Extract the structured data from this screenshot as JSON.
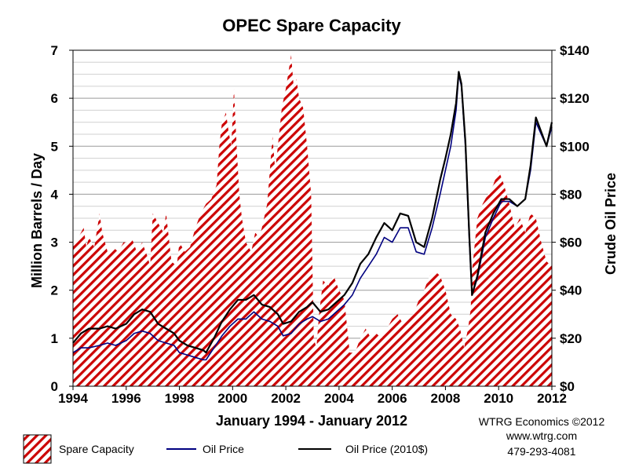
{
  "chart_data": {
    "type": "area",
    "title": "OPEC Spare Capacity",
    "xlabel": "January 1994 - January 2012",
    "ylabel": "Million Barrels / Day",
    "y2label": "Crude Oil Price",
    "xlim": [
      1994,
      2012
    ],
    "ylim": [
      0,
      7
    ],
    "y2lim": [
      0,
      140
    ],
    "grid": true,
    "x_ticks": [
      1994,
      1996,
      1998,
      2000,
      2002,
      2004,
      2006,
      2008,
      2010,
      2012
    ],
    "x_tick_labels": [
      "1994",
      "1996",
      "1998",
      "2000",
      "2002",
      "2004",
      "2006",
      "2008",
      "2010",
      "2012"
    ],
    "y_ticks": [
      0,
      1,
      2,
      3,
      4,
      5,
      6,
      7
    ],
    "y_tick_labels": [
      "0",
      "1",
      "2",
      "3",
      "4",
      "5",
      "6",
      "7"
    ],
    "y2_ticks": [
      0,
      20,
      40,
      60,
      80,
      100,
      120,
      140
    ],
    "y2_tick_labels": [
      "$0",
      "$20",
      "$40",
      "$60",
      "$80",
      "$100",
      "$120",
      "$140"
    ],
    "legend_placement": "bottom-left",
    "series": [
      {
        "name": "Spare Capacity",
        "kind": "area",
        "axis": "left",
        "color": "#cc0000",
        "x": [
          1994.0,
          1994.2,
          1994.4,
          1994.5,
          1994.6,
          1994.8,
          1995.0,
          1995.1,
          1995.3,
          1995.5,
          1995.7,
          1995.9,
          1996.0,
          1996.2,
          1996.4,
          1996.6,
          1996.8,
          1996.9,
          1997.0,
          1997.2,
          1997.4,
          1997.5,
          1997.7,
          1997.9,
          1998.0,
          1998.2,
          1998.4,
          1998.6,
          1998.8,
          1999.0,
          1999.2,
          1999.4,
          1999.5,
          1999.6,
          1999.75,
          1999.85,
          1999.95,
          2000.05,
          2000.15,
          2000.25,
          2000.35,
          2000.5,
          2000.7,
          2000.85,
          2001.0,
          2001.1,
          2001.3,
          2001.5,
          2001.6,
          2001.7,
          2001.85,
          2002.0,
          2002.2,
          2002.3,
          2002.4,
          2002.5,
          2002.65,
          2002.8,
          2002.95,
          2003.05,
          2003.15,
          2003.25,
          2003.4,
          2003.6,
          2003.8,
          2004.0,
          2004.2,
          2004.4,
          2004.6,
          2004.8,
          2005.0,
          2005.2,
          2005.4,
          2005.6,
          2005.8,
          2006.0,
          2006.2,
          2006.4,
          2006.6,
          2006.8,
          2007.0,
          2007.2,
          2007.4,
          2007.6,
          2007.8,
          2008.0,
          2008.2,
          2008.4,
          2008.55,
          2008.7,
          2008.85,
          2008.95,
          2009.0,
          2009.2,
          2009.4,
          2009.6,
          2009.8,
          2010.0,
          2010.2,
          2010.4,
          2010.6,
          2010.8,
          2011.0,
          2011.2,
          2011.4,
          2011.6,
          2011.8,
          2012.0
        ],
        "values": [
          3.0,
          3.1,
          3.3,
          2.9,
          3.1,
          2.9,
          3.6,
          3.2,
          2.8,
          2.9,
          2.8,
          3.0,
          3.0,
          3.1,
          2.8,
          3.0,
          2.7,
          2.5,
          3.6,
          3.4,
          3.2,
          3.6,
          2.6,
          2.5,
          3.0,
          2.8,
          2.9,
          3.3,
          3.6,
          3.8,
          3.9,
          4.2,
          5.0,
          5.5,
          5.7,
          5.3,
          5.0,
          6.2,
          5.0,
          4.0,
          3.5,
          3.0,
          2.8,
          3.2,
          3.1,
          3.3,
          3.8,
          5.2,
          4.5,
          5.0,
          5.8,
          6.2,
          6.9,
          6.2,
          6.4,
          6.0,
          5.8,
          5.0,
          4.0,
          1.0,
          0.8,
          1.5,
          2.2,
          2.1,
          2.3,
          2.0,
          1.8,
          0.7,
          0.7,
          1.0,
          1.2,
          1.0,
          1.1,
          1.0,
          1.2,
          1.4,
          1.5,
          1.3,
          1.4,
          1.5,
          1.8,
          2.0,
          2.3,
          2.4,
          2.3,
          2.0,
          1.5,
          1.4,
          1.2,
          0.8,
          1.2,
          1.6,
          2.4,
          3.5,
          3.8,
          4.0,
          4.2,
          4.5,
          4.2,
          3.8,
          3.3,
          3.5,
          3.2,
          3.6,
          3.5,
          3.0,
          2.6,
          2.5
        ]
      },
      {
        "name": "Oil Price",
        "kind": "line",
        "axis": "right",
        "color": "#000080",
        "x": [
          1994.0,
          1994.3,
          1994.6,
          1995.0,
          1995.3,
          1995.6,
          1996.0,
          1996.3,
          1996.6,
          1996.9,
          1997.2,
          1997.5,
          1997.8,
          1998.0,
          1998.3,
          1998.6,
          1998.9,
          1999.0,
          1999.3,
          1999.6,
          1999.9,
          2000.2,
          2000.5,
          2000.8,
          2001.1,
          2001.4,
          2001.7,
          2001.9,
          2002.2,
          2002.5,
          2002.8,
          2003.0,
          2003.3,
          2003.6,
          2003.9,
          2004.2,
          2004.5,
          2004.8,
          2005.1,
          2005.4,
          2005.7,
          2006.0,
          2006.3,
          2006.6,
          2006.9,
          2007.2,
          2007.5,
          2007.8,
          2008.0,
          2008.2,
          2008.4,
          2008.5,
          2008.6,
          2008.75,
          2008.9,
          2009.0,
          2009.2,
          2009.5,
          2009.8,
          2010.1,
          2010.4,
          2010.7,
          2011.0,
          2011.2,
          2011.4,
          2011.6,
          2011.8,
          2012.0
        ],
        "values": [
          14,
          16,
          16,
          17,
          18,
          17,
          19,
          22,
          23,
          22,
          19,
          18,
          17,
          14,
          13,
          12,
          11,
          11,
          16,
          21,
          25,
          28,
          28,
          31,
          28,
          27,
          25,
          21,
          22,
          26,
          28,
          29,
          27,
          28,
          31,
          34,
          38,
          45,
          50,
          55,
          62,
          60,
          66,
          66,
          56,
          55,
          66,
          80,
          90,
          100,
          115,
          130,
          125,
          100,
          60,
          38,
          45,
          62,
          70,
          77,
          77,
          75,
          78,
          90,
          110,
          105,
          100,
          108
        ]
      },
      {
        "name": "Oil Price (2010$)",
        "kind": "line",
        "axis": "right",
        "color": "#000000",
        "x": [
          1994.0,
          1994.3,
          1994.6,
          1995.0,
          1995.3,
          1995.6,
          1996.0,
          1996.3,
          1996.6,
          1996.9,
          1997.2,
          1997.5,
          1997.8,
          1998.0,
          1998.3,
          1998.6,
          1998.9,
          1999.0,
          1999.3,
          1999.6,
          1999.9,
          2000.2,
          2000.5,
          2000.8,
          2001.1,
          2001.4,
          2001.7,
          2001.9,
          2002.2,
          2002.5,
          2002.8,
          2003.0,
          2003.3,
          2003.6,
          2003.9,
          2004.2,
          2004.5,
          2004.8,
          2005.1,
          2005.4,
          2005.7,
          2006.0,
          2006.3,
          2006.6,
          2006.9,
          2007.2,
          2007.5,
          2007.8,
          2008.0,
          2008.2,
          2008.4,
          2008.5,
          2008.6,
          2008.75,
          2008.9,
          2009.0,
          2009.2,
          2009.5,
          2009.8,
          2010.1,
          2010.4,
          2010.7,
          2011.0,
          2011.2,
          2011.4,
          2011.6,
          2011.8,
          2012.0
        ],
        "values": [
          18,
          22,
          24,
          24,
          25,
          24,
          26,
          30,
          32,
          31,
          26,
          24,
          22,
          19,
          17,
          16,
          15,
          14,
          20,
          27,
          32,
          36,
          36,
          38,
          34,
          33,
          30,
          26,
          27,
          31,
          33,
          35,
          31,
          32,
          35,
          38,
          43,
          51,
          55,
          62,
          68,
          65,
          72,
          71,
          60,
          58,
          70,
          86,
          95,
          105,
          118,
          131,
          126,
          102,
          62,
          38,
          46,
          64,
          72,
          78,
          78,
          75,
          78,
          92,
          112,
          106,
          100,
          110
        ]
      }
    ]
  },
  "credits": {
    "line1": "WTRG Economics  ©2012",
    "line2": "www.wtrg.com",
    "line3": "479-293-4081"
  }
}
